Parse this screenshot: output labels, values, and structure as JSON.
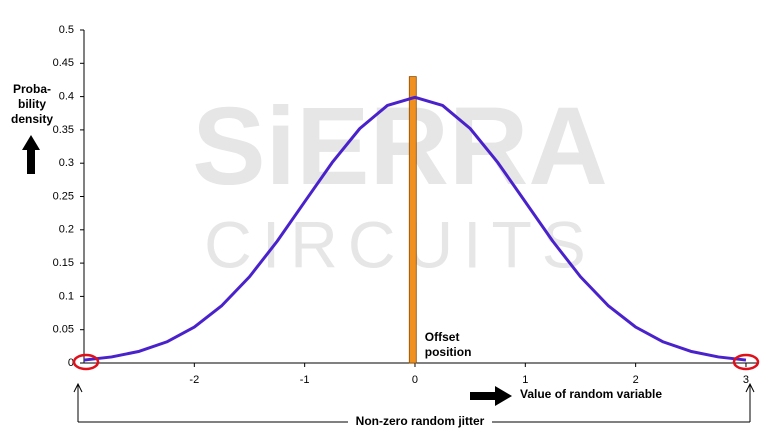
{
  "chart_data": {
    "type": "line",
    "watermark": [
      "SiERRA",
      "CIRCUITS"
    ],
    "y_label_lines": [
      "Proba-",
      "bility",
      "density"
    ],
    "x_label": "Value of random variable",
    "bracket_label": "Non-zero random jitter",
    "offset": {
      "x": -0.02,
      "value": 0.43,
      "color": "#f0901e",
      "label_lines": [
        "Offset",
        "position"
      ]
    },
    "x": [
      -3,
      -2.75,
      -2.5,
      -2.25,
      -2,
      -1.75,
      -1.5,
      -1.25,
      -1,
      -0.75,
      -0.5,
      -0.25,
      0,
      0.25,
      0.5,
      0.75,
      1,
      1.25,
      1.5,
      1.75,
      2,
      2.25,
      2.5,
      2.75,
      3
    ],
    "series": [
      {
        "color": "#4a22cc",
        "values": [
          0.0044,
          0.0091,
          0.0175,
          0.0317,
          0.054,
          0.0863,
          0.1295,
          0.1826,
          0.242,
          0.3011,
          0.3521,
          0.3867,
          0.3989,
          0.3867,
          0.3521,
          0.3011,
          0.242,
          0.1826,
          0.1295,
          0.0863,
          0.054,
          0.0317,
          0.0175,
          0.0091,
          0.0044
        ]
      }
    ],
    "xlim": [
      -3,
      3.1
    ],
    "xticks": [
      -2,
      -1,
      0,
      1,
      2,
      3
    ],
    "ylim": [
      0,
      0.5
    ],
    "yticks": [
      0,
      0.05,
      0.1,
      0.15,
      0.2,
      0.25,
      0.3,
      0.35,
      0.4,
      0.45,
      0.5
    ]
  }
}
